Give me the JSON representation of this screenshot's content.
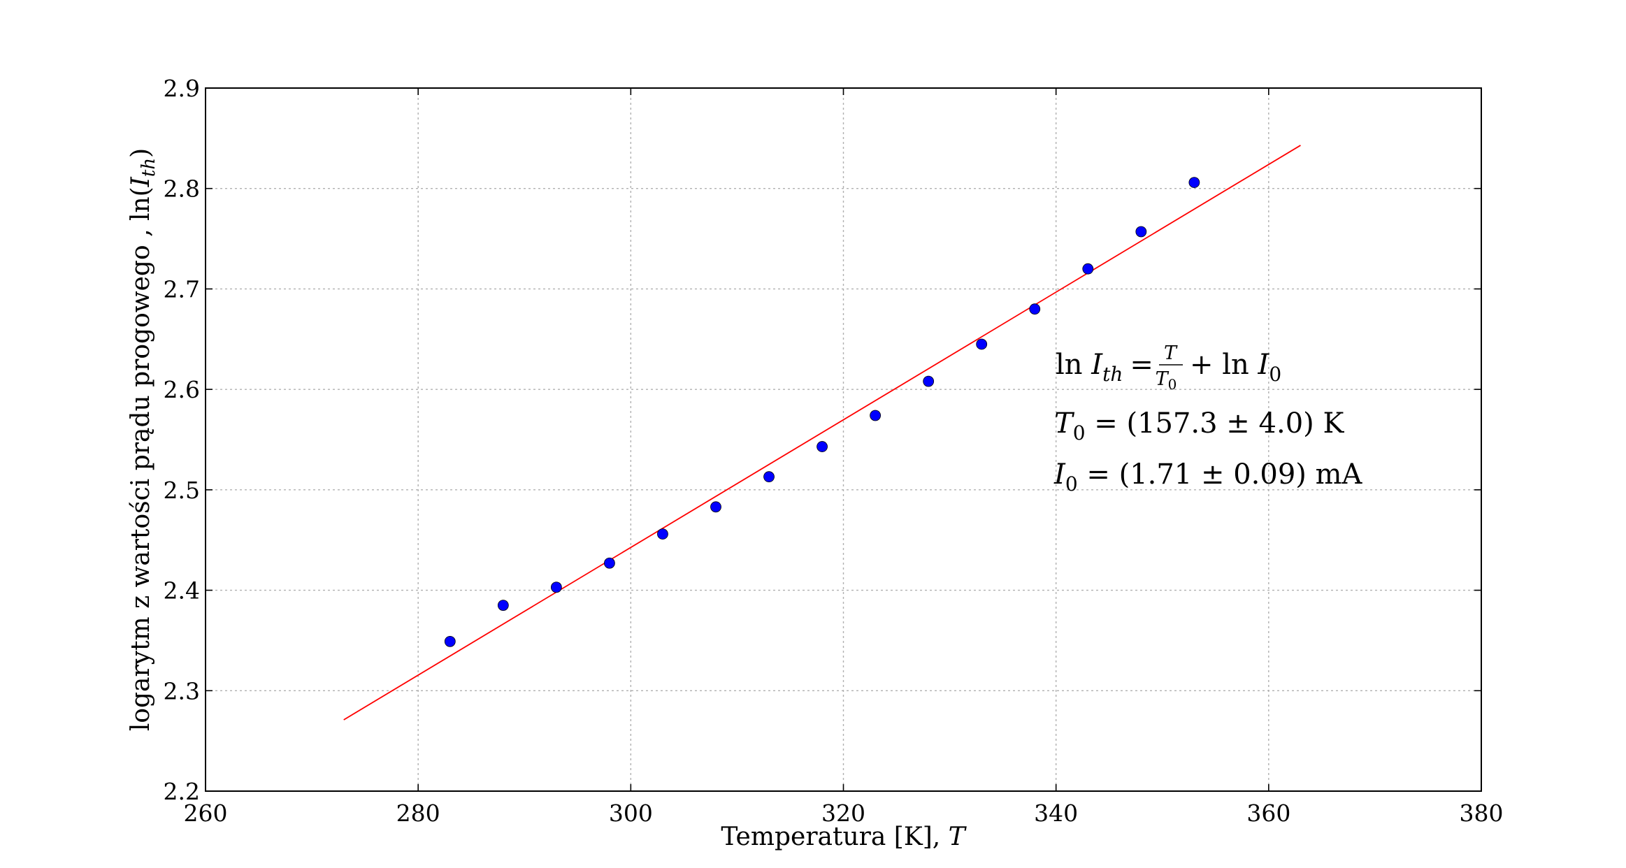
{
  "chart_data": {
    "type": "scatter",
    "title": "",
    "xlabel": "Temperatura [K], ",
    "xlabel_var": "T",
    "ylabel": "logarytm z wartości prądu progowego , ln(",
    "ylabel_var": "I",
    "ylabel_sub": "th",
    "ylabel_close": ")",
    "xlim": [
      260,
      380
    ],
    "ylim": [
      2.2,
      2.9
    ],
    "xticks": [
      "260",
      "280",
      "300",
      "320",
      "340",
      "360",
      "380"
    ],
    "yticks": [
      "2.2",
      "2.3",
      "2.4",
      "2.5",
      "2.6",
      "2.7",
      "2.8",
      "2.9"
    ],
    "grid": true,
    "series": [
      {
        "kind": "points",
        "color": "#0000ff",
        "x": [
          283,
          288,
          293,
          298,
          303,
          308,
          313,
          318,
          323,
          328,
          333,
          338,
          343,
          348,
          353
        ],
        "y": [
          2.349,
          2.385,
          2.403,
          2.427,
          2.456,
          2.483,
          2.513,
          2.543,
          2.574,
          2.608,
          2.645,
          2.68,
          2.72,
          2.757,
          2.806
        ]
      },
      {
        "kind": "fit-line",
        "color": "#ff0000",
        "x": [
          273,
          363
        ],
        "y": [
          2.271,
          2.843
        ]
      }
    ],
    "annotations": {
      "formula": {
        "ln": "ln",
        "lhs_var": "I",
        "lhs_sub": "th",
        "eq": "=",
        "num": "T",
        "den_var": "T",
        "den_sub": "0",
        "plus": "+ ln",
        "rhs_var": "I",
        "rhs_sub": "0"
      },
      "t0": {
        "var": "T",
        "sub": "0",
        "text": " = (157.3 ± 4.0) K"
      },
      "i0": {
        "var": "I",
        "sub": "0",
        "text": " = (1.71 ± 0.09) mA"
      }
    }
  }
}
